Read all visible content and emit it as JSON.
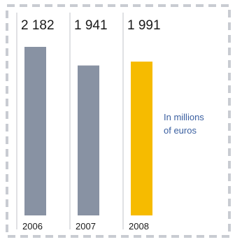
{
  "chart_data": {
    "type": "bar",
    "categories": [
      "2006",
      "2007",
      "2008"
    ],
    "values": [
      2182,
      1941,
      1991
    ],
    "value_labels": [
      "2 182",
      "1 941",
      "1 991"
    ],
    "annotation_lines": [
      "In millions",
      "of euros"
    ],
    "colors": {
      "bars": [
        "#8892a3",
        "#8892a3",
        "#f6bb00"
      ],
      "frame": "#c9ccd2",
      "divider": "#c0c3c8",
      "annotation": "#3a5fa0",
      "text": "#1a1a1a"
    },
    "xlabel": "",
    "ylabel": "",
    "ylim": [
      0,
      2200
    ],
    "grid": false
  }
}
